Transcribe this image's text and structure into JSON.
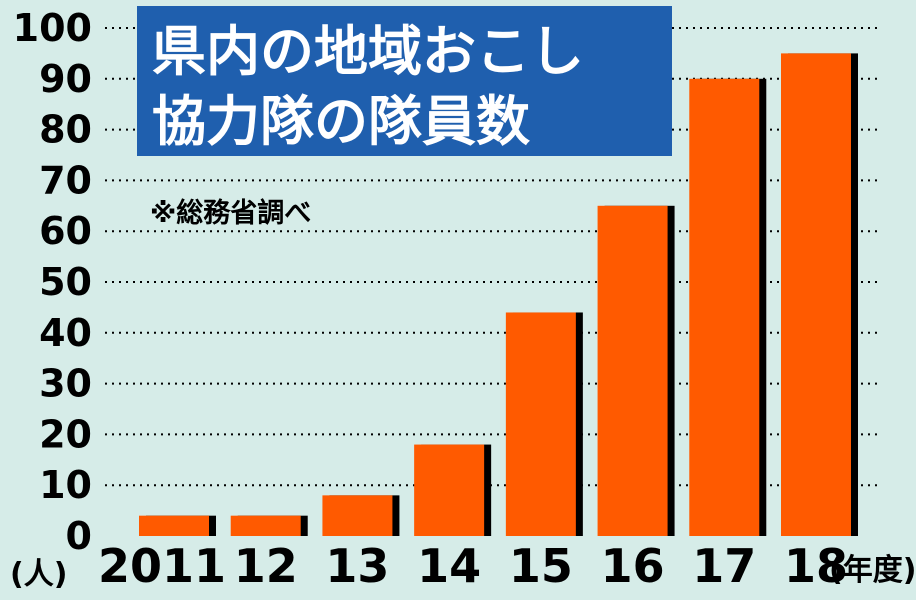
{
  "chart_data": {
    "type": "bar",
    "title_lines": [
      "県内の地域おこし",
      "協力隊の隊員数"
    ],
    "note": "※総務省調べ",
    "y_unit_label": "(人)",
    "x_unit_label": "(年度)",
    "categories": [
      "2011",
      "12",
      "13",
      "14",
      "15",
      "16",
      "17",
      "18"
    ],
    "values": [
      4,
      4,
      8,
      18,
      44,
      65,
      90,
      95
    ],
    "ylim": [
      0,
      100
    ],
    "yticks": [
      0,
      10,
      20,
      30,
      40,
      50,
      60,
      70,
      80,
      90,
      100
    ],
    "grid": true,
    "colors": {
      "bar": "#ff5a00",
      "shadow": "#000000",
      "title_bg": "#1f5fae",
      "background": "#d6ece8"
    }
  }
}
